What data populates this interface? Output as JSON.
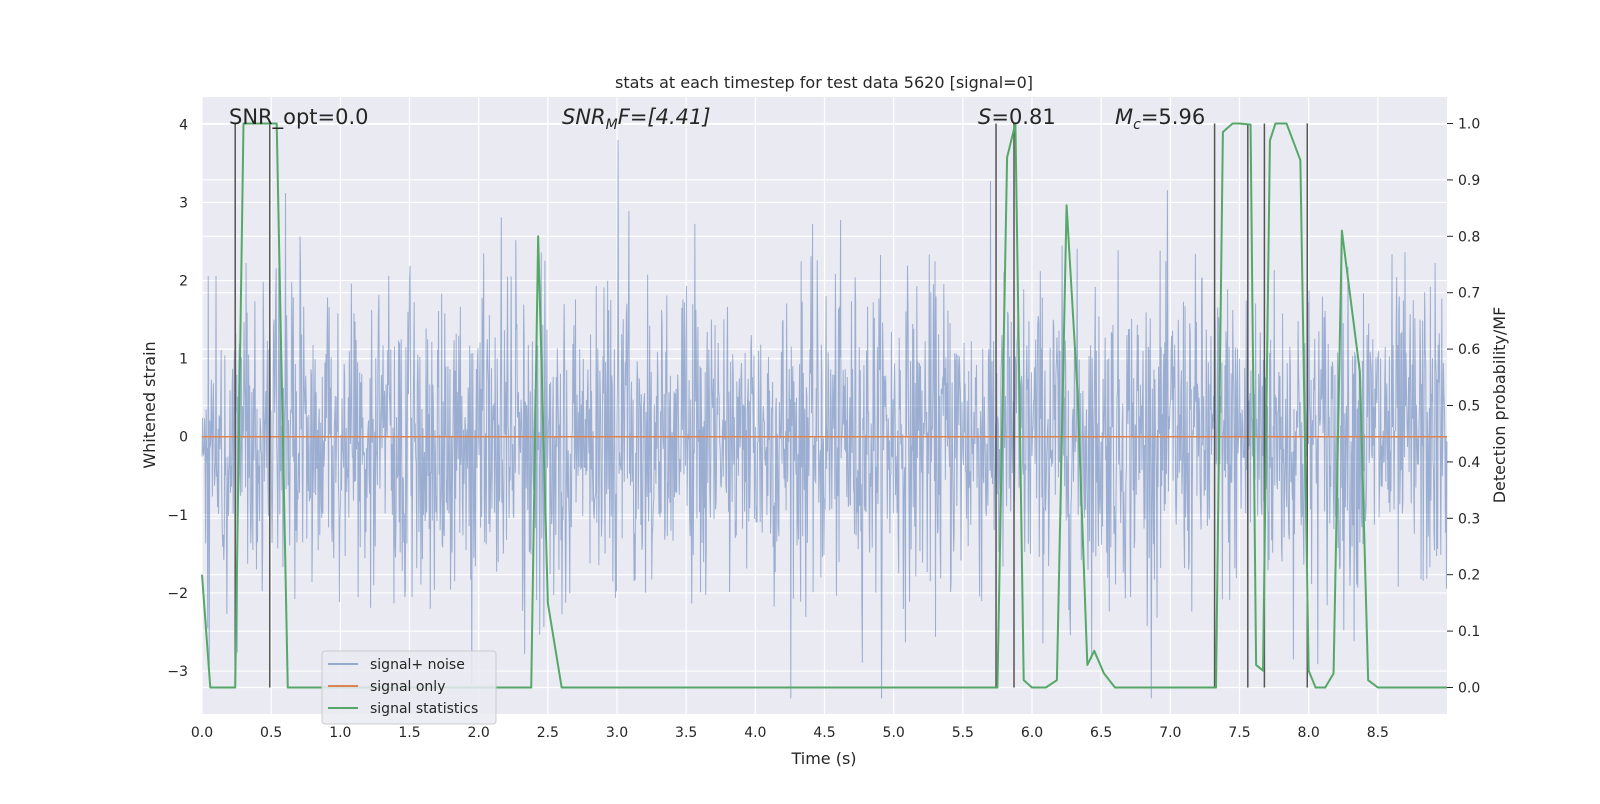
{
  "chart_data": {
    "type": "line",
    "title": "stats at each timestep for test data 5620 [signal=0]",
    "xlabel": "Time (s)",
    "ylabel_left": "Whitened strain",
    "ylabel_right": "Detection probability/MF",
    "xlim": [
      0.0,
      9.0
    ],
    "ylim_left": [
      -3.55,
      4.35
    ],
    "ylim_right": [
      -0.047,
      1.047
    ],
    "x_ticks": [
      "0.0",
      "0.5",
      "1.0",
      "1.5",
      "2.0",
      "2.5",
      "3.0",
      "3.5",
      "4.0",
      "4.5",
      "5.0",
      "5.5",
      "6.0",
      "6.5",
      "7.0",
      "7.5",
      "8.0",
      "8.5"
    ],
    "y_ticks_left": [
      "4",
      "3",
      "2",
      "1",
      "0",
      "−1",
      "−2",
      "−3"
    ],
    "y_ticks_right": [
      "1.0",
      "0.9",
      "0.8",
      "0.7",
      "0.6",
      "0.5",
      "0.4",
      "0.3",
      "0.2",
      "0.1",
      "0.0"
    ],
    "grid": true,
    "legend_location": "lower-left",
    "annotations": {
      "snr_opt": "SNR_opt=0.0",
      "snr_mf_label": "SNR",
      "snr_mf_sub": "M",
      "snr_mf_rest": "F=[4.41]",
      "s_italic": "S",
      "s_value": "=0.81",
      "mc_italic": "M",
      "mc_sub": "c",
      "mc_value": "=5.96"
    },
    "series": [
      {
        "name": "signal+ noise",
        "color": "#4c72b0",
        "kind": "noise",
        "amplitude_std": 1.0
      },
      {
        "name": "signal only",
        "color": "#dd8452",
        "kind": "constant",
        "value": 0
      },
      {
        "name": "signal statistics",
        "color": "#55a868",
        "kind": "probability",
        "x": [
          0.0,
          0.06,
          0.1,
          0.18,
          0.24,
          0.3,
          0.4,
          0.48,
          0.54,
          0.62,
          0.7,
          1.0,
          1.5,
          2.0,
          2.38,
          2.43,
          2.5,
          2.6,
          3.0,
          4.0,
          5.0,
          5.75,
          5.82,
          5.88,
          5.94,
          6.0,
          6.1,
          6.18,
          6.25,
          6.33,
          6.4,
          6.45,
          6.52,
          6.6,
          7.0,
          7.33,
          7.38,
          7.45,
          7.5,
          7.58,
          7.62,
          7.67,
          7.72,
          7.76,
          7.84,
          7.94,
          8.0,
          8.05,
          8.12,
          8.18,
          8.24,
          8.37,
          8.43,
          8.5,
          8.6,
          9.0
        ],
        "y": [
          0.2,
          0.0,
          0.0,
          0.0,
          0.0,
          1.0,
          1.0,
          1.0,
          1.0,
          0.0,
          0.0,
          0.0,
          0.0,
          0.0,
          0.0,
          0.8,
          0.15,
          0.0,
          0.0,
          0.0,
          0.0,
          0.0,
          0.94,
          1.0,
          0.013,
          0.0,
          0.0,
          0.013,
          0.855,
          0.52,
          0.04,
          0.065,
          0.025,
          0.0,
          0.0,
          0.0,
          0.985,
          1.0,
          1.0,
          0.998,
          0.04,
          0.03,
          0.97,
          1.0,
          1.0,
          0.935,
          0.03,
          0.0,
          0.0,
          0.025,
          0.81,
          0.56,
          0.013,
          0.0,
          0.0,
          0.0
        ]
      }
    ],
    "vertical_lines_x": [
      0.24,
      0.49,
      5.74,
      5.87,
      7.32,
      7.56,
      7.68,
      7.99
    ]
  },
  "legend": {
    "noise_label": "signal+ noise",
    "signal_label": "signal only",
    "stats_label": "signal statistics"
  }
}
